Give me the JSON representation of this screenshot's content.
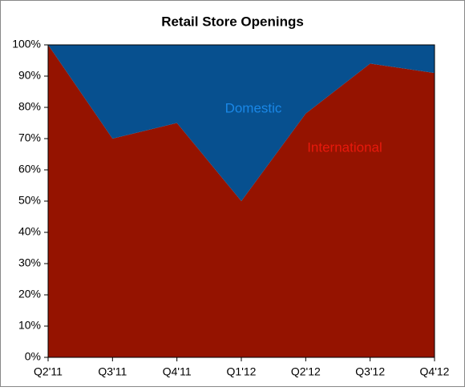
{
  "chart_data": {
    "type": "stacked_area",
    "title": "Retail Store Openings",
    "categories": [
      "Q2'11",
      "Q3'11",
      "Q4'11",
      "Q1'12",
      "Q2'12",
      "Q3'12",
      "Q4'12"
    ],
    "series": [
      {
        "name": "International",
        "color": "#951300",
        "label_color": "#e8190c",
        "values": [
          100,
          70,
          75,
          50,
          78,
          94,
          91
        ]
      },
      {
        "name": "Domestic",
        "color": "#07508f",
        "label_color": "#1a87e6",
        "values": [
          0,
          30,
          25,
          50,
          22,
          6,
          9
        ]
      }
    ],
    "ylim": [
      0,
      100
    ],
    "yticks": [
      {
        "value": 0,
        "label": "0%"
      },
      {
        "value": 10,
        "label": "10%"
      },
      {
        "value": 20,
        "label": "20%"
      },
      {
        "value": 30,
        "label": "30%"
      },
      {
        "value": 40,
        "label": "40%"
      },
      {
        "value": 50,
        "label": "50%"
      },
      {
        "value": 60,
        "label": "60%"
      },
      {
        "value": 70,
        "label": "70%"
      },
      {
        "value": 80,
        "label": "80%"
      },
      {
        "value": 90,
        "label": "90%"
      },
      {
        "value": 100,
        "label": "100%"
      }
    ]
  }
}
